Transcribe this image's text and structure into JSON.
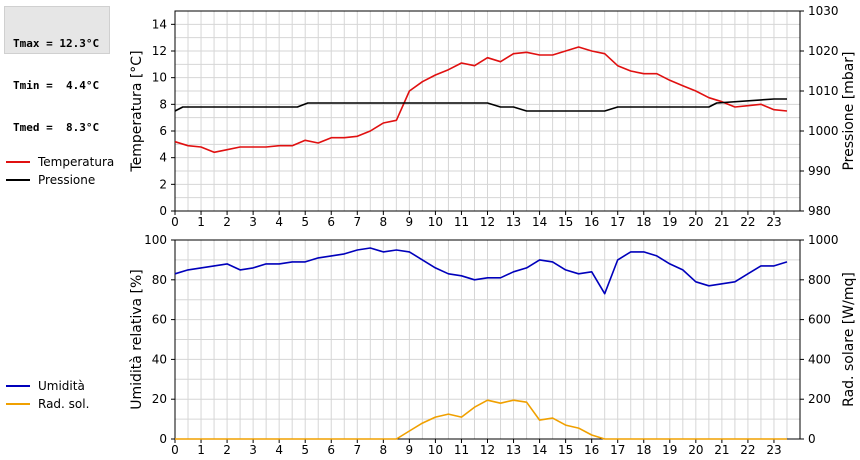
{
  "stats": {
    "tmax": "Tmax = 12.3°C",
    "tmin": "Tmin =  4.4°C",
    "tmed": "Tmed =  8.3°C"
  },
  "chart_data": [
    {
      "type": "line",
      "ylabel": "Temperatura [°C]",
      "y2label": "Pressione [mbar]",
      "xlim": [
        0,
        24
      ],
      "ylim": [
        0,
        15
      ],
      "y2lim": [
        980,
        1030
      ],
      "x_ticks": [
        "0",
        "1",
        "2",
        "3",
        "4",
        "5",
        "6",
        "7",
        "8",
        "9",
        "10",
        "11",
        "12",
        "13",
        "14",
        "15",
        "16",
        "17",
        "18",
        "19",
        "20",
        "21",
        "22",
        "23"
      ],
      "y_ticks": [
        "0",
        "2",
        "4",
        "6",
        "8",
        "10",
        "12",
        "14"
      ],
      "y2_ticks": [
        "980",
        "990",
        "1000",
        "1010",
        "1020",
        "1030"
      ],
      "grid": true,
      "legend_position": "left",
      "series": [
        {
          "name": "Temperatura",
          "color": "#e01010",
          "axis": "left",
          "x": [
            0,
            0.5,
            1,
            1.5,
            2,
            2.5,
            3,
            3.5,
            4,
            4.5,
            5,
            5.5,
            6,
            6.5,
            7,
            7.5,
            8,
            8.5,
            9,
            9.5,
            10,
            10.5,
            11,
            11.5,
            12,
            12.5,
            13,
            13.5,
            14,
            14.5,
            15,
            15.5,
            16,
            16.5,
            17,
            17.5,
            18,
            18.5,
            19,
            19.5,
            20,
            20.5,
            21,
            21.5,
            22,
            22.5,
            23,
            23.5
          ],
          "values": [
            5.2,
            4.9,
            4.8,
            4.4,
            4.6,
            4.8,
            4.8,
            4.8,
            4.9,
            4.9,
            5.3,
            5.1,
            5.5,
            5.5,
            5.6,
            6.0,
            6.6,
            6.8,
            9.0,
            9.7,
            10.2,
            10.6,
            11.1,
            10.9,
            11.5,
            11.2,
            11.8,
            11.9,
            11.7,
            11.7,
            12.0,
            12.3,
            12.0,
            11.8,
            10.9,
            10.5,
            10.3,
            10.3,
            9.8,
            9.4,
            9.0,
            8.5,
            8.2,
            7.8,
            7.9,
            8.0,
            7.6,
            7.5
          ]
        },
        {
          "name": "Pressione",
          "color": "#000000",
          "axis": "right",
          "x": [
            0,
            0.3,
            0.5,
            1,
            4.7,
            5.1,
            12,
            12.5,
            13,
            13.5,
            16.5,
            17,
            20.5,
            20.8,
            23,
            23.5
          ],
          "values": [
            1005,
            1006,
            1006,
            1006,
            1006,
            1007,
            1007,
            1006,
            1006,
            1005,
            1005,
            1006,
            1006,
            1007,
            1008,
            1008
          ]
        }
      ]
    },
    {
      "type": "line",
      "ylabel": "Umidità relativa [%]",
      "y2label": "Rad. solare [W/mq]",
      "xlim": [
        0,
        24
      ],
      "ylim": [
        0,
        100
      ],
      "y2lim": [
        0,
        1000
      ],
      "x_ticks": [
        "0",
        "1",
        "2",
        "3",
        "4",
        "5",
        "6",
        "7",
        "8",
        "9",
        "10",
        "11",
        "12",
        "13",
        "14",
        "15",
        "16",
        "17",
        "18",
        "19",
        "20",
        "21",
        "22",
        "23"
      ],
      "y_ticks": [
        "0",
        "20",
        "40",
        "60",
        "80",
        "100"
      ],
      "y2_ticks": [
        "0",
        "200",
        "400",
        "600",
        "800",
        "1000"
      ],
      "grid": true,
      "legend_position": "left",
      "series": [
        {
          "name": "Umidità",
          "color": "#0000bb",
          "axis": "left",
          "x": [
            0,
            0.5,
            1,
            1.5,
            2,
            2.5,
            3,
            3.5,
            4,
            4.5,
            5,
            5.5,
            6,
            6.5,
            7,
            7.5,
            8,
            8.5,
            9,
            9.5,
            10,
            10.5,
            11,
            11.5,
            12,
            12.5,
            13,
            13.5,
            14,
            14.5,
            15,
            15.5,
            16,
            16.5,
            17,
            17.5,
            18,
            18.5,
            19,
            19.5,
            20,
            20.5,
            21,
            21.5,
            22,
            22.5,
            23,
            23.5
          ],
          "values": [
            83,
            85,
            86,
            87,
            88,
            85,
            86,
            88,
            88,
            89,
            89,
            91,
            92,
            93,
            95,
            96,
            94,
            95,
            94,
            90,
            86,
            83,
            82,
            80,
            81,
            81,
            84,
            86,
            90,
            89,
            85,
            83,
            84,
            73,
            90,
            94,
            94,
            92,
            88,
            85,
            79,
            77,
            78,
            79,
            83,
            87,
            87,
            89
          ]
        },
        {
          "name": "Rad. sol.",
          "color": "#f0a000",
          "axis": "right",
          "x": [
            0,
            8.5,
            9,
            9.5,
            10,
            10.5,
            11,
            11.5,
            12,
            12.5,
            13,
            13.5,
            14,
            14.5,
            15,
            15.5,
            16,
            16.5,
            17,
            23.5
          ],
          "values": [
            0,
            0,
            40,
            80,
            110,
            125,
            110,
            160,
            195,
            180,
            195,
            185,
            95,
            105,
            70,
            55,
            20,
            0,
            0,
            0
          ]
        }
      ]
    }
  ]
}
